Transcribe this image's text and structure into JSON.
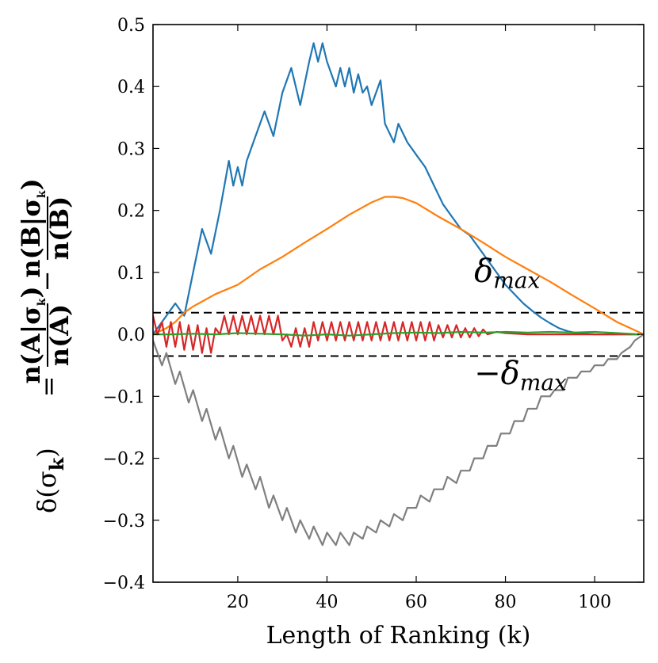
{
  "chart_data": {
    "type": "line",
    "title": "",
    "xlabel": "Length of Ranking (k)",
    "ylabel": "δ(σk) = n(A|σk)/n(A) − n(B|σk)/n(B)",
    "ylabel_parts": {
      "lhs": "δ(σ",
      "lhs_sub": "k",
      "lhs_close": ")",
      "equals": "=",
      "num1": "n(A|σ",
      "num1_sub": "k",
      "num1_close": ")",
      "den1": "n(A)",
      "minus": "−",
      "num2": "n(B|σ",
      "num2_sub": "k",
      "num2_close": ")",
      "den2": "n(B)"
    },
    "xlim": [
      1,
      111
    ],
    "ylim": [
      -0.4,
      0.5
    ],
    "xticks": [
      20,
      40,
      60,
      80,
      100
    ],
    "yticks": [
      -0.4,
      -0.3,
      -0.2,
      -0.1,
      0.0,
      0.1,
      0.2,
      0.3,
      0.4,
      0.5
    ],
    "xtick_labels": [
      "20",
      "40",
      "60",
      "80",
      "100"
    ],
    "ytick_labels": [
      "−0.4",
      "−0.3",
      "−0.2",
      "−0.1",
      "0.0",
      "0.1",
      "0.2",
      "0.3",
      "0.4",
      "0.5"
    ],
    "grid": false,
    "annotations": [
      {
        "text": "δ",
        "sub": "max",
        "x": 73,
        "y": 0.085,
        "sign": ""
      },
      {
        "text": "δ",
        "sub": "max",
        "x": 73,
        "y": -0.08,
        "sign": "−"
      }
    ],
    "threshold_lines": [
      {
        "y": 0.035,
        "style": "dashed",
        "color": "#000000"
      },
      {
        "y": -0.035,
        "style": "dashed",
        "color": "#000000"
      }
    ],
    "series": [
      {
        "color": "#1f77b4",
        "x": [
          1,
          3,
          5,
          6,
          8,
          10,
          12,
          14,
          16,
          18,
          19,
          20,
          21,
          22,
          24,
          26,
          28,
          30,
          32,
          34,
          36,
          37,
          38,
          39,
          40,
          42,
          43,
          44,
          45,
          46,
          47,
          48,
          49,
          50,
          52,
          53,
          55,
          56,
          58,
          60,
          62,
          64,
          66,
          68,
          70,
          72,
          74,
          76,
          78,
          80,
          82,
          84,
          86,
          88,
          90,
          92,
          94,
          96,
          100,
          105,
          110
        ],
        "y": [
          0.0,
          0.02,
          0.04,
          0.05,
          0.03,
          0.1,
          0.17,
          0.13,
          0.2,
          0.28,
          0.24,
          0.27,
          0.24,
          0.28,
          0.32,
          0.36,
          0.32,
          0.39,
          0.43,
          0.37,
          0.44,
          0.47,
          0.44,
          0.47,
          0.44,
          0.4,
          0.43,
          0.4,
          0.43,
          0.39,
          0.42,
          0.39,
          0.4,
          0.37,
          0.41,
          0.34,
          0.31,
          0.34,
          0.31,
          0.29,
          0.27,
          0.24,
          0.21,
          0.19,
          0.17,
          0.16,
          0.14,
          0.12,
          0.1,
          0.08,
          0.065,
          0.05,
          0.038,
          0.027,
          0.018,
          0.01,
          0.005,
          0.002,
          0.0,
          0.0,
          0.0
        ]
      },
      {
        "color": "#ff7f0e",
        "x": [
          1,
          4,
          6,
          8,
          10,
          15,
          20,
          25,
          30,
          35,
          40,
          45,
          50,
          53,
          55,
          57,
          60,
          65,
          70,
          75,
          80,
          85,
          90,
          95,
          100,
          105,
          111
        ],
        "y": [
          0.0,
          0.01,
          0.02,
          0.035,
          0.045,
          0.065,
          0.08,
          0.105,
          0.125,
          0.148,
          0.17,
          0.193,
          0.213,
          0.222,
          0.222,
          0.22,
          0.212,
          0.19,
          0.17,
          0.148,
          0.125,
          0.105,
          0.085,
          0.063,
          0.042,
          0.02,
          0.0
        ]
      },
      {
        "color": "#d62728",
        "x": [
          1,
          2,
          3,
          4,
          5,
          6,
          7,
          8,
          9,
          10,
          11,
          12,
          13,
          14,
          15,
          16,
          17,
          18,
          19,
          20,
          21,
          22,
          23,
          24,
          25,
          26,
          27,
          28,
          29,
          30,
          31,
          32,
          33,
          34,
          35,
          36,
          37,
          38,
          39,
          40,
          41,
          42,
          43,
          44,
          45,
          46,
          47,
          48,
          49,
          50,
          51,
          52,
          53,
          54,
          55,
          56,
          57,
          58,
          59,
          60,
          61,
          62,
          63,
          64,
          65,
          66,
          67,
          68,
          69,
          70,
          71,
          72,
          73,
          74,
          75,
          76,
          78,
          80,
          85,
          90,
          95,
          100,
          105,
          110
        ],
        "y": [
          0.03,
          0.0,
          0.02,
          -0.02,
          0.02,
          -0.02,
          0.02,
          -0.025,
          0.015,
          -0.025,
          0.015,
          -0.03,
          0.01,
          -0.03,
          0.01,
          0.0,
          0.03,
          0.0,
          0.03,
          0.0,
          0.03,
          0.0,
          0.03,
          0.0,
          0.03,
          0.0,
          0.03,
          0.0,
          0.03,
          -0.01,
          0.0,
          -0.02,
          0.01,
          -0.02,
          0.01,
          -0.02,
          0.02,
          -0.01,
          0.02,
          -0.01,
          0.02,
          -0.01,
          0.02,
          -0.01,
          0.02,
          -0.01,
          0.02,
          -0.01,
          0.02,
          -0.01,
          0.02,
          -0.01,
          0.02,
          -0.01,
          0.02,
          -0.01,
          0.02,
          -0.01,
          0.02,
          -0.01,
          0.02,
          -0.01,
          0.02,
          -0.01,
          0.015,
          -0.005,
          0.015,
          -0.005,
          0.015,
          -0.005,
          0.01,
          -0.005,
          0.01,
          -0.003,
          0.008,
          0.0,
          0.004,
          0.002,
          0.0,
          0.0,
          0.0,
          0.0,
          0.0,
          0.0
        ]
      },
      {
        "color": "#2ca02c",
        "x": [
          1,
          5,
          10,
          15,
          20,
          25,
          30,
          35,
          40,
          45,
          50,
          55,
          60,
          65,
          70,
          75,
          80,
          85,
          90,
          95,
          100,
          105,
          110
        ],
        "y": [
          0.0,
          0.0,
          0.001,
          0.0,
          0.002,
          0.001,
          0.0,
          -0.002,
          0.0,
          -0.002,
          0.0,
          0.002,
          0.003,
          0.002,
          0.004,
          0.003,
          0.004,
          0.003,
          0.004,
          0.003,
          0.004,
          0.002,
          0.0
        ]
      },
      {
        "color": "#7f7f7f",
        "x": [
          1,
          3,
          4,
          6,
          7,
          9,
          10,
          12,
          13,
          15,
          16,
          18,
          19,
          21,
          22,
          24,
          25,
          27,
          28,
          30,
          31,
          33,
          34,
          36,
          37,
          39,
          40,
          42,
          43,
          45,
          46,
          48,
          49,
          51,
          52,
          54,
          55,
          57,
          58,
          60,
          61,
          63,
          64,
          66,
          67,
          69,
          70,
          72,
          73,
          75,
          76,
          78,
          79,
          81,
          82,
          84,
          85,
          87,
          88,
          90,
          91,
          93,
          94,
          96,
          97,
          99,
          100,
          102,
          103,
          105,
          106,
          108,
          109,
          111
        ],
        "y": [
          -0.01,
          -0.05,
          -0.03,
          -0.08,
          -0.06,
          -0.11,
          -0.09,
          -0.14,
          -0.12,
          -0.17,
          -0.15,
          -0.2,
          -0.18,
          -0.23,
          -0.21,
          -0.25,
          -0.23,
          -0.28,
          -0.26,
          -0.3,
          -0.28,
          -0.32,
          -0.3,
          -0.33,
          -0.31,
          -0.34,
          -0.32,
          -0.34,
          -0.32,
          -0.34,
          -0.32,
          -0.33,
          -0.31,
          -0.32,
          -0.3,
          -0.31,
          -0.29,
          -0.3,
          -0.28,
          -0.28,
          -0.26,
          -0.27,
          -0.25,
          -0.25,
          -0.23,
          -0.24,
          -0.22,
          -0.22,
          -0.2,
          -0.2,
          -0.18,
          -0.18,
          -0.16,
          -0.16,
          -0.14,
          -0.14,
          -0.12,
          -0.12,
          -0.1,
          -0.1,
          -0.09,
          -0.09,
          -0.07,
          -0.07,
          -0.06,
          -0.06,
          -0.05,
          -0.05,
          -0.04,
          -0.04,
          -0.03,
          -0.02,
          -0.01,
          0.0
        ]
      }
    ]
  }
}
